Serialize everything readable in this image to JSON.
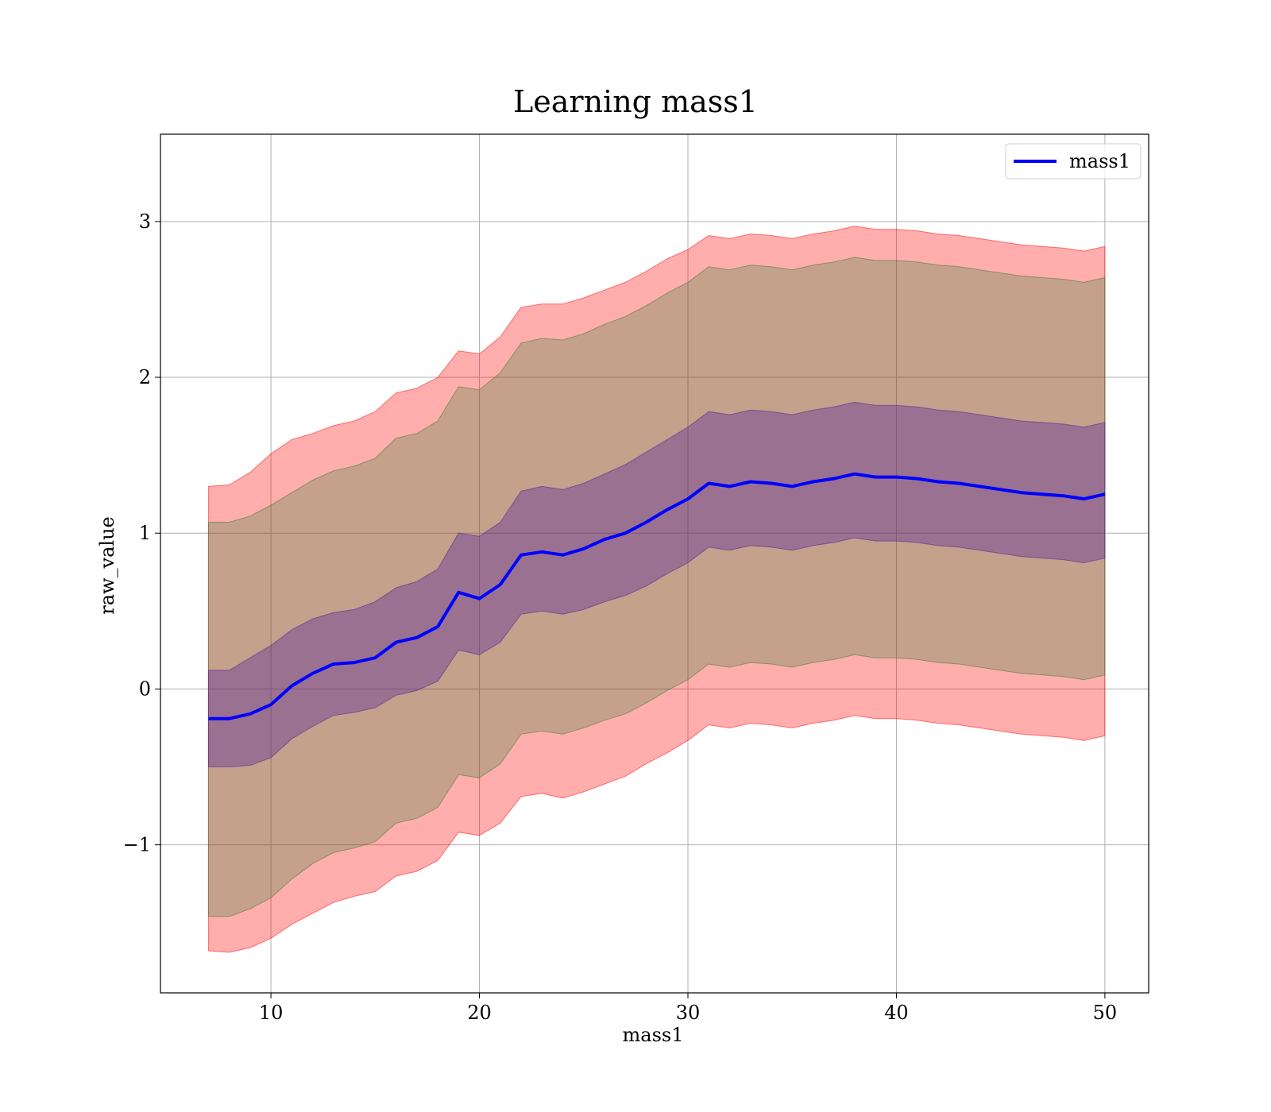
{
  "chart_data": {
    "type": "line",
    "title": "Learning mass1",
    "xlabel": "mass1",
    "ylabel": "raw_value",
    "xlim": [
      4.7,
      52.1
    ],
    "ylim": [
      -1.95,
      3.56
    ],
    "xticks": [
      10,
      20,
      30,
      40,
      50
    ],
    "yticks": [
      -1,
      0,
      1,
      2,
      3
    ],
    "xtick_labels": [
      "10",
      "20",
      "30",
      "40",
      "50"
    ],
    "ytick_labels": [
      "−1",
      "0",
      "1",
      "2",
      "3"
    ],
    "grid": true,
    "legend": {
      "placement": "top-right",
      "entries": [
        "mass1"
      ]
    },
    "series": [
      {
        "name": "mass1",
        "color": "#0000ff",
        "x": [
          7.0,
          8.0,
          9.0,
          10.0,
          11.0,
          12.0,
          13.0,
          14.0,
          15.0,
          16.0,
          17.0,
          18.0,
          19.0,
          20.0,
          21.0,
          22.0,
          23.0,
          24.0,
          25.0,
          26.0,
          27.0,
          28.0,
          29.0,
          30.0,
          31.0,
          32.0,
          33.0,
          34.0,
          35.0,
          36.0,
          37.0,
          38.0,
          39.0,
          40.0,
          41.0,
          42.0,
          43.0,
          44.0,
          45.0,
          46.0,
          47.0,
          48.0,
          49.0,
          50.0
        ],
        "values": [
          -0.19,
          -0.19,
          -0.16,
          -0.1,
          0.02,
          0.1,
          0.16,
          0.17,
          0.2,
          0.3,
          0.33,
          0.4,
          0.62,
          0.58,
          0.67,
          0.86,
          0.88,
          0.86,
          0.9,
          0.96,
          1.0,
          1.07,
          1.15,
          1.22,
          1.32,
          1.3,
          1.33,
          1.32,
          1.3,
          1.33,
          1.35,
          1.38,
          1.36,
          1.36,
          1.35,
          1.33,
          1.32,
          1.3,
          1.28,
          1.26,
          1.25,
          1.24,
          1.22,
          1.25
        ]
      }
    ],
    "bands": [
      {
        "color": "#ff0000",
        "alpha": 0.32,
        "upper": [
          1.3,
          1.31,
          1.39,
          1.51,
          1.6,
          1.64,
          1.69,
          1.72,
          1.78,
          1.9,
          1.93,
          2.0,
          2.17,
          2.15,
          2.26,
          2.45,
          2.47,
          2.47,
          2.51,
          2.56,
          2.61,
          2.68,
          2.76,
          2.82,
          2.91,
          2.89,
          2.92,
          2.91,
          2.89,
          2.92,
          2.94,
          2.97,
          2.95,
          2.95,
          2.94,
          2.92,
          2.91,
          2.89,
          2.87,
          2.85,
          2.84,
          2.83,
          2.81,
          2.84
        ],
        "lower": [
          -1.68,
          -1.69,
          -1.66,
          -1.6,
          -1.51,
          -1.44,
          -1.37,
          -1.33,
          -1.3,
          -1.2,
          -1.17,
          -1.1,
          -0.92,
          -0.94,
          -0.86,
          -0.69,
          -0.67,
          -0.7,
          -0.66,
          -0.61,
          -0.56,
          -0.48,
          -0.41,
          -0.33,
          -0.23,
          -0.25,
          -0.22,
          -0.23,
          -0.25,
          -0.22,
          -0.2,
          -0.17,
          -0.19,
          -0.19,
          -0.2,
          -0.22,
          -0.23,
          -0.25,
          -0.27,
          -0.29,
          -0.3,
          -0.31,
          -0.33,
          -0.3
        ]
      },
      {
        "color": "#2e7d32",
        "alpha": 0.28,
        "upper": [
          1.07,
          1.07,
          1.11,
          1.18,
          1.26,
          1.34,
          1.4,
          1.43,
          1.48,
          1.61,
          1.64,
          1.72,
          1.94,
          1.92,
          2.03,
          2.22,
          2.25,
          2.24,
          2.28,
          2.34,
          2.39,
          2.46,
          2.54,
          2.61,
          2.71,
          2.69,
          2.72,
          2.71,
          2.69,
          2.72,
          2.74,
          2.77,
          2.75,
          2.75,
          2.74,
          2.72,
          2.71,
          2.69,
          2.67,
          2.65,
          2.64,
          2.63,
          2.61,
          2.64
        ],
        "lower": [
          -1.46,
          -1.46,
          -1.41,
          -1.34,
          -1.22,
          -1.12,
          -1.05,
          -1.02,
          -0.98,
          -0.86,
          -0.83,
          -0.76,
          -0.55,
          -0.57,
          -0.48,
          -0.29,
          -0.27,
          -0.29,
          -0.25,
          -0.2,
          -0.16,
          -0.09,
          -0.01,
          0.06,
          0.16,
          0.14,
          0.17,
          0.16,
          0.14,
          0.17,
          0.19,
          0.22,
          0.2,
          0.2,
          0.19,
          0.17,
          0.16,
          0.14,
          0.12,
          0.1,
          0.09,
          0.08,
          0.06,
          0.09
        ]
      },
      {
        "color": "#4b1a9c",
        "alpha": 0.35,
        "upper": [
          0.12,
          0.12,
          0.2,
          0.28,
          0.38,
          0.45,
          0.49,
          0.51,
          0.56,
          0.65,
          0.69,
          0.77,
          1.0,
          0.98,
          1.07,
          1.27,
          1.3,
          1.28,
          1.32,
          1.38,
          1.44,
          1.52,
          1.6,
          1.68,
          1.78,
          1.76,
          1.79,
          1.78,
          1.76,
          1.79,
          1.81,
          1.84,
          1.82,
          1.82,
          1.81,
          1.79,
          1.78,
          1.76,
          1.74,
          1.72,
          1.71,
          1.7,
          1.68,
          1.71
        ],
        "lower": [
          -0.5,
          -0.5,
          -0.49,
          -0.44,
          -0.32,
          -0.24,
          -0.17,
          -0.15,
          -0.12,
          -0.04,
          -0.01,
          0.05,
          0.25,
          0.22,
          0.3,
          0.48,
          0.5,
          0.48,
          0.51,
          0.56,
          0.6,
          0.66,
          0.74,
          0.81,
          0.91,
          0.89,
          0.92,
          0.91,
          0.89,
          0.92,
          0.94,
          0.97,
          0.95,
          0.95,
          0.94,
          0.92,
          0.91,
          0.89,
          0.87,
          0.85,
          0.84,
          0.83,
          0.81,
          0.84
        ]
      }
    ]
  }
}
